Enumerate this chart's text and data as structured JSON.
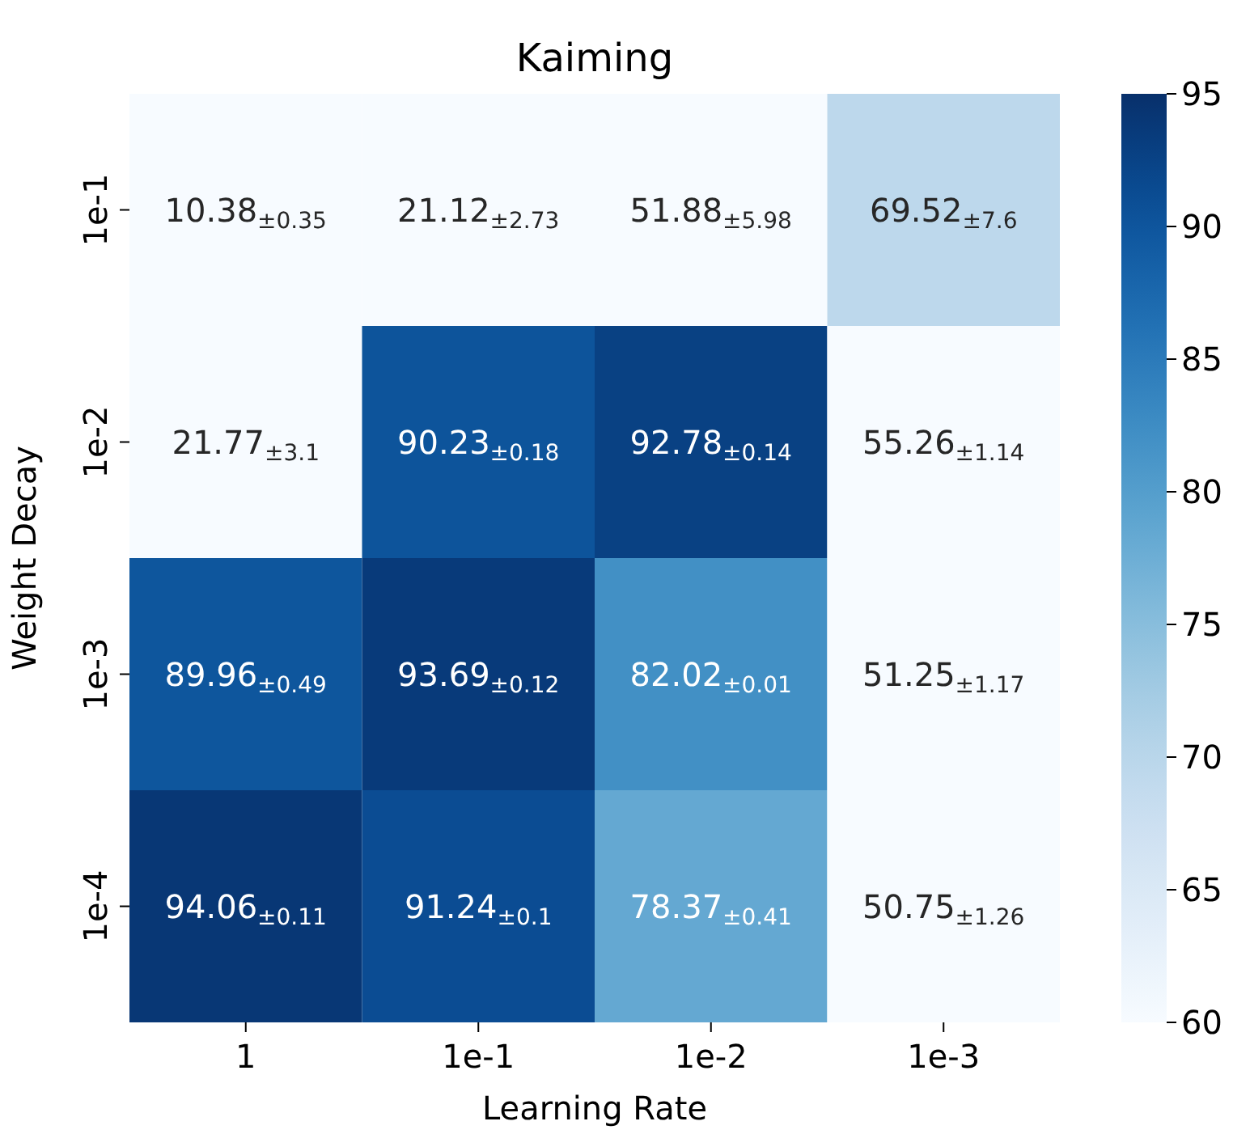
{
  "chart_data": {
    "type": "heatmap",
    "title": "Kaiming",
    "xlabel": "Learning Rate",
    "ylabel": "Weight Decay",
    "categories": [
      "1",
      "1e-1",
      "1e-2",
      "1e-3"
    ],
    "y_categories": [
      "1e-1",
      "1e-2",
      "1e-3",
      "1e-4"
    ],
    "cells": [
      [
        10.38,
        21.12,
        51.88,
        69.52
      ],
      [
        21.77,
        90.23,
        92.78,
        55.26
      ],
      [
        89.96,
        93.69,
        82.02,
        51.25
      ],
      [
        94.06,
        91.24,
        78.37,
        50.75
      ]
    ],
    "cell_labels": [
      [
        "10.38$_{±0.35}$",
        "21.12$_{±2.73}$",
        "51.88$_{±5.98}$",
        "69.52$_{±7.6}$"
      ],
      [
        "21.77$_{±3.1}$",
        "90.23$_{±0.18}$",
        "92.78$_{±0.14}$",
        "55.26$_{±1.14}$"
      ],
      [
        "89.96$_{±0.49}$",
        "93.69$_{±0.12}$",
        "82.02$_{±0.01}$",
        "51.25$_{±1.17}$"
      ],
      [
        "94.06$_{±0.11}$",
        "91.24$_{±0.1}$",
        "78.37$_{±0.41}$",
        "50.75$_{±1.26}$"
      ]
    ],
    "clim": [
      60,
      95
    ],
    "cticks": [
      60,
      65,
      70,
      75,
      80,
      85,
      90,
      95
    ]
  }
}
